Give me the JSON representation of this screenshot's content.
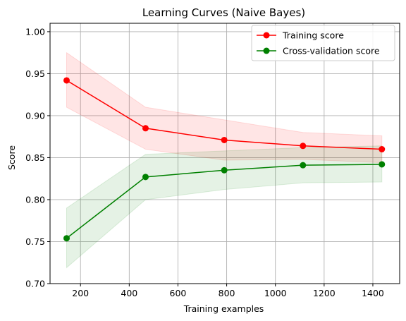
{
  "chart_data": {
    "type": "line",
    "title": "Learning Curves (Naive Bayes)",
    "xlabel": "Training examples",
    "ylabel": "Score",
    "xlim": [
      75,
      1510
    ],
    "ylim": [
      0.7,
      1.01
    ],
    "xticks": [
      200,
      400,
      600,
      800,
      1000,
      1200,
      1400
    ],
    "yticks": [
      0.7,
      0.75,
      0.8,
      0.85,
      0.9,
      0.95,
      1.0
    ],
    "xtick_labels": [
      "200",
      "400",
      "600",
      "800",
      "1000",
      "1200",
      "1400"
    ],
    "ytick_labels": [
      "0.70",
      "0.75",
      "0.80",
      "0.85",
      "0.90",
      "0.95",
      "1.00"
    ],
    "grid": true,
    "legend_position": "top-right",
    "x": [
      143,
      467,
      790,
      1113,
      1437
    ],
    "series": [
      {
        "name": "Training score",
        "color": "#ff0000",
        "band_color": "#ff0000",
        "values": [
          0.942,
          0.885,
          0.871,
          0.864,
          0.86
        ],
        "upper": [
          0.975,
          0.91,
          0.895,
          0.88,
          0.876
        ],
        "lower": [
          0.91,
          0.86,
          0.847,
          0.848,
          0.844
        ]
      },
      {
        "name": "Cross-validation score",
        "color": "#008000",
        "band_color": "#008000",
        "values": [
          0.754,
          0.827,
          0.835,
          0.841,
          0.842
        ],
        "upper": [
          0.79,
          0.854,
          0.858,
          0.862,
          0.864
        ],
        "lower": [
          0.719,
          0.8,
          0.812,
          0.82,
          0.821
        ]
      }
    ]
  }
}
